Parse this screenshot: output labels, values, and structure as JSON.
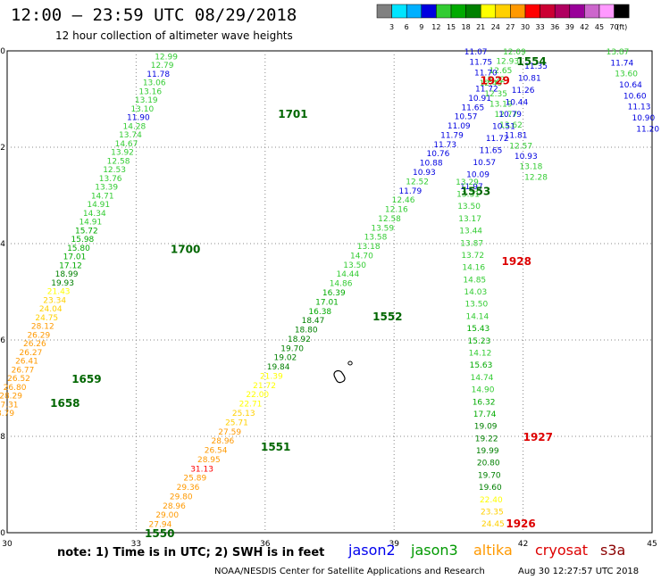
{
  "header": {
    "title": "12:00 – 23:59 UTC 08/29/2018",
    "subtitle": "12 hour collection of altimeter wave heights"
  },
  "legend": {
    "unit": "(ft)",
    "steps": [
      {
        "color": "#808080",
        "label": "3"
      },
      {
        "color": "#00e5ff",
        "label": "6"
      },
      {
        "color": "#00b0ff",
        "label": "9"
      },
      {
        "color": "#0000e0",
        "label": "12"
      },
      {
        "color": "#33cc33",
        "label": "15"
      },
      {
        "color": "#00aa00",
        "label": "18"
      },
      {
        "color": "#008000",
        "label": "21"
      },
      {
        "color": "#ffff00",
        "label": "24"
      },
      {
        "color": "#ffd000",
        "label": "27"
      },
      {
        "color": "#ff9900",
        "label": "30"
      },
      {
        "color": "#ff0000",
        "label": "33"
      },
      {
        "color": "#cc0033",
        "label": "36"
      },
      {
        "color": "#b00060",
        "label": "39"
      },
      {
        "color": "#990099",
        "label": "42"
      },
      {
        "color": "#cc66cc",
        "label": "45"
      },
      {
        "color": "#ff99ff",
        "label": "70"
      },
      {
        "color": "#000000",
        "label": ""
      }
    ]
  },
  "map": {
    "lon_ticks": [
      "30",
      "33",
      "36",
      "39",
      "42",
      "45"
    ],
    "lat_ticks": [
      "-40",
      "-42",
      "-44",
      "-46",
      "-48",
      "-50"
    ]
  },
  "time_labels": [
    {
      "text": "1554",
      "color": "#006600",
      "lon": 41.85,
      "lat": -40.2
    },
    {
      "text": "1929",
      "color": "#dd0000",
      "lon": 41.0,
      "lat": -40.6
    },
    {
      "text": "1701",
      "color": "#006600",
      "lon": 36.3,
      "lat": -41.3
    },
    {
      "text": "1553",
      "color": "#006600",
      "lon": 40.55,
      "lat": -42.9
    },
    {
      "text": "1700",
      "color": "#006600",
      "lon": 33.8,
      "lat": -44.1
    },
    {
      "text": "1928",
      "color": "#dd0000",
      "lon": 41.5,
      "lat": -44.35
    },
    {
      "text": "1552",
      "color": "#006600",
      "lon": 38.5,
      "lat": -45.5
    },
    {
      "text": "1659",
      "color": "#006600",
      "lon": 31.5,
      "lat": -46.8
    },
    {
      "text": "1658",
      "color": "#006600",
      "lon": 31.0,
      "lat": -47.3
    },
    {
      "text": "1927",
      "color": "#dd0000",
      "lon": 42.0,
      "lat": -48.0
    },
    {
      "text": "1551",
      "color": "#006600",
      "lon": 35.9,
      "lat": -48.2
    },
    {
      "text": "1926",
      "color": "#dd0000",
      "lon": 41.6,
      "lat": -49.8
    },
    {
      "text": "1550",
      "color": "#006600",
      "lon": 33.2,
      "lat": -50.0
    }
  ],
  "tracks": [
    {
      "name": "jason3-pass-1",
      "start": [
        33.7,
        -40.1
      ],
      "end": [
        29.9,
        -47.5
      ],
      "values": [
        {
          "t": "12.99",
          "c": "#33cc33"
        },
        {
          "t": "12.79",
          "c": "#33cc33"
        },
        {
          "t": "11.78",
          "c": "#0000e0"
        },
        {
          "t": "13.06",
          "c": "#33cc33"
        },
        {
          "t": "13.16",
          "c": "#33cc33"
        },
        {
          "t": "13.19",
          "c": "#33cc33"
        },
        {
          "t": "13.10",
          "c": "#33cc33"
        },
        {
          "t": "11.90",
          "c": "#0000e0"
        },
        {
          "t": "14.28",
          "c": "#33cc33"
        },
        {
          "t": "13.74",
          "c": "#33cc33"
        },
        {
          "t": "14.67",
          "c": "#33cc33"
        },
        {
          "t": "13.92",
          "c": "#33cc33"
        },
        {
          "t": "12.58",
          "c": "#33cc33"
        },
        {
          "t": "12.53",
          "c": "#33cc33"
        },
        {
          "t": "13.76",
          "c": "#33cc33"
        },
        {
          "t": "13.39",
          "c": "#33cc33"
        },
        {
          "t": "14.71",
          "c": "#33cc33"
        },
        {
          "t": "14.91",
          "c": "#33cc33"
        },
        {
          "t": "14.34",
          "c": "#33cc33"
        },
        {
          "t": "14.91",
          "c": "#33cc33"
        },
        {
          "t": "15.72",
          "c": "#00aa00"
        },
        {
          "t": "15.98",
          "c": "#00aa00"
        },
        {
          "t": "15.80",
          "c": "#00aa00"
        },
        {
          "t": "17.01",
          "c": "#00aa00"
        },
        {
          "t": "17.12",
          "c": "#00aa00"
        },
        {
          "t": "18.99",
          "c": "#008000"
        },
        {
          "t": "19.93",
          "c": "#008000"
        },
        {
          "t": "21.43",
          "c": "#ffff00"
        },
        {
          "t": "23.34",
          "c": "#ffd000"
        },
        {
          "t": "24.04",
          "c": "#ffd000"
        },
        {
          "t": "24.75",
          "c": "#ffd000"
        },
        {
          "t": "28.12",
          "c": "#ff9900"
        },
        {
          "t": "26.29",
          "c": "#ff9900"
        },
        {
          "t": "26.26",
          "c": "#ff9900"
        },
        {
          "t": "26.27",
          "c": "#ff9900"
        },
        {
          "t": "26.41",
          "c": "#ff9900"
        },
        {
          "t": "26.77",
          "c": "#ff9900"
        },
        {
          "t": "26.52",
          "c": "#ff9900"
        },
        {
          "t": "26.80",
          "c": "#ff9900"
        },
        {
          "t": "28.29",
          "c": "#ff9900"
        },
        {
          "t": "27.31",
          "c": "#ff9900"
        },
        {
          "t": "28.79",
          "c": "#ff9900"
        }
      ]
    },
    {
      "name": "jason3-pass-2",
      "start": [
        41.8,
        -40.0
      ],
      "end": [
        33.4,
        -50.0
      ],
      "values": [
        {
          "t": "12.09",
          "c": "#33cc33"
        },
        {
          "t": "12.93",
          "c": "#33cc33"
        },
        {
          "t": "12.65",
          "c": "#33cc33"
        },
        {
          "t": "12.22",
          "c": "#33cc33"
        },
        {
          "t": "11.72",
          "c": "#0000e0"
        },
        {
          "t": "10.91",
          "c": "#0000e0"
        },
        {
          "t": "11.65",
          "c": "#0000e0"
        },
        {
          "t": "10.57",
          "c": "#0000e0"
        },
        {
          "t": "11.09",
          "c": "#0000e0"
        },
        {
          "t": "11.79",
          "c": "#0000e0"
        },
        {
          "t": "11.73",
          "c": "#0000e0"
        },
        {
          "t": "10.76",
          "c": "#0000e0"
        },
        {
          "t": "10.88",
          "c": "#0000e0"
        },
        {
          "t": "10.93",
          "c": "#0000e0"
        },
        {
          "t": "12.52",
          "c": "#33cc33"
        },
        {
          "t": "11.79",
          "c": "#0000e0"
        },
        {
          "t": "12.46",
          "c": "#33cc33"
        },
        {
          "t": "12.16",
          "c": "#33cc33"
        },
        {
          "t": "12.58",
          "c": "#33cc33"
        },
        {
          "t": "13.59",
          "c": "#33cc33"
        },
        {
          "t": "13.58",
          "c": "#33cc33"
        },
        {
          "t": "13.18",
          "c": "#33cc33"
        },
        {
          "t": "14.70",
          "c": "#33cc33"
        },
        {
          "t": "13.50",
          "c": "#33cc33"
        },
        {
          "t": "14.44",
          "c": "#33cc33"
        },
        {
          "t": "14.86",
          "c": "#33cc33"
        },
        {
          "t": "16.39",
          "c": "#00aa00"
        },
        {
          "t": "17.01",
          "c": "#00aa00"
        },
        {
          "t": "16.38",
          "c": "#00aa00"
        },
        {
          "t": "18.47",
          "c": "#008000"
        },
        {
          "t": "18.80",
          "c": "#008000"
        },
        {
          "t": "18.92",
          "c": "#008000"
        },
        {
          "t": "19.70",
          "c": "#008000"
        },
        {
          "t": "19.02",
          "c": "#008000"
        },
        {
          "t": "19.84",
          "c": "#008000"
        },
        {
          "t": "21.39",
          "c": "#ffff00"
        },
        {
          "t": "21.72",
          "c": "#ffff00"
        },
        {
          "t": "22.00",
          "c": "#ffff00"
        },
        {
          "t": "22.71",
          "c": "#ffff00"
        },
        {
          "t": "25.13",
          "c": "#ffd000"
        },
        {
          "t": "25.71",
          "c": "#ffd000"
        },
        {
          "t": "27.59",
          "c": "#ff9900"
        },
        {
          "t": "28.96",
          "c": "#ff9900"
        },
        {
          "t": "26.54",
          "c": "#ff9900"
        },
        {
          "t": "28.95",
          "c": "#ff9900"
        },
        {
          "t": "31.13",
          "c": "#ff0000"
        },
        {
          "t": "25.89",
          "c": "#ff9900"
        },
        {
          "t": "29.36",
          "c": "#ff9900"
        },
        {
          "t": "29.80",
          "c": "#ff9900"
        },
        {
          "t": "28.96",
          "c": "#ff9900"
        },
        {
          "t": "29.00",
          "c": "#ff9900"
        },
        {
          "t": "27.94",
          "c": "#ff9900"
        },
        {
          "t": "27.70",
          "c": "#ff9900"
        }
      ]
    },
    {
      "name": "jason2-pass",
      "start": [
        40.9,
        -40.0
      ],
      "end": [
        42.3,
        -42.6
      ],
      "values": [
        {
          "t": "11.07",
          "c": "#0000e0"
        },
        {
          "t": "11.75",
          "c": "#0000e0"
        },
        {
          "t": "11.70",
          "c": "#0000e0"
        },
        {
          "t": "12.49",
          "c": "#33cc33"
        },
        {
          "t": "12.35",
          "c": "#33cc33"
        },
        {
          "t": "13.19",
          "c": "#33cc33"
        },
        {
          "t": "12.77",
          "c": "#33cc33"
        },
        {
          "t": "13.62",
          "c": "#33cc33"
        },
        {
          "t": "11.81",
          "c": "#0000e0"
        },
        {
          "t": "12.57",
          "c": "#33cc33"
        },
        {
          "t": "10.93",
          "c": "#0000e0"
        },
        {
          "t": "13.18",
          "c": "#33cc33"
        },
        {
          "t": "12.28",
          "c": "#33cc33"
        }
      ]
    },
    {
      "name": "jason2-east-pass",
      "start": [
        42.3,
        -40.3
      ],
      "end": [
        40.8,
        -42.8
      ],
      "values": [
        {
          "t": "11.35",
          "c": "#0000e0"
        },
        {
          "t": "10.81",
          "c": "#0000e0"
        },
        {
          "t": "11.26",
          "c": "#0000e0"
        },
        {
          "t": "10.44",
          "c": "#0000e0"
        },
        {
          "t": "10.79",
          "c": "#0000e0"
        },
        {
          "t": "10.51",
          "c": "#0000e0"
        },
        {
          "t": "11.72",
          "c": "#0000e0"
        },
        {
          "t": "11.65",
          "c": "#0000e0"
        },
        {
          "t": "10.57",
          "c": "#0000e0"
        },
        {
          "t": "10.09",
          "c": "#0000e0"
        },
        {
          "t": "11.97",
          "c": "#0000e0"
        }
      ]
    },
    {
      "name": "cryosat-pass",
      "start": [
        40.7,
        -42.7
      ],
      "end": [
        41.3,
        -49.8
      ],
      "values": [
        {
          "t": "13.29",
          "c": "#33cc33"
        },
        {
          "t": "13.31",
          "c": "#33cc33"
        },
        {
          "t": "13.50",
          "c": "#33cc33"
        },
        {
          "t": "13.17",
          "c": "#33cc33"
        },
        {
          "t": "13.44",
          "c": "#33cc33"
        },
        {
          "t": "13.87",
          "c": "#33cc33"
        },
        {
          "t": "13.72",
          "c": "#33cc33"
        },
        {
          "t": "14.16",
          "c": "#33cc33"
        },
        {
          "t": "14.85",
          "c": "#33cc33"
        },
        {
          "t": "14.03",
          "c": "#33cc33"
        },
        {
          "t": "13.50",
          "c": "#33cc33"
        },
        {
          "t": "14.14",
          "c": "#33cc33"
        },
        {
          "t": "15.43",
          "c": "#00aa00"
        },
        {
          "t": "15.23",
          "c": "#00aa00"
        },
        {
          "t": "14.12",
          "c": "#33cc33"
        },
        {
          "t": "15.63",
          "c": "#00aa00"
        },
        {
          "t": "14.74",
          "c": "#33cc33"
        },
        {
          "t": "14.90",
          "c": "#33cc33"
        },
        {
          "t": "16.32",
          "c": "#00aa00"
        },
        {
          "t": "17.74",
          "c": "#00aa00"
        },
        {
          "t": "19.09",
          "c": "#008000"
        },
        {
          "t": "19.22",
          "c": "#008000"
        },
        {
          "t": "19.99",
          "c": "#008000"
        },
        {
          "t": "20.80",
          "c": "#008000"
        },
        {
          "t": "19.70",
          "c": "#008000"
        },
        {
          "t": "19.60",
          "c": "#008000"
        },
        {
          "t": "22.40",
          "c": "#ffff00"
        },
        {
          "t": "23.35",
          "c": "#ffd000"
        },
        {
          "t": "24.45",
          "c": "#ffd000"
        }
      ]
    },
    {
      "name": "east-edge-pass",
      "start": [
        44.2,
        -40.0
      ],
      "end": [
        44.9,
        -41.6
      ],
      "values": [
        {
          "t": "13.87",
          "c": "#33cc33"
        },
        {
          "t": "11.74",
          "c": "#0000e0"
        },
        {
          "t": "13.60",
          "c": "#33cc33"
        },
        {
          "t": "10.64",
          "c": "#0000e0"
        },
        {
          "t": "10.60",
          "c": "#0000e0"
        },
        {
          "t": "11.13",
          "c": "#0000e0"
        },
        {
          "t": "10.90",
          "c": "#0000e0"
        },
        {
          "t": "11.20",
          "c": "#0000e0"
        }
      ]
    }
  ],
  "footer": {
    "note": "note: 1) Time is in UTC; 2) SWH is in feet",
    "satellites": [
      {
        "label": "jason2",
        "color": "#0000ee"
      },
      {
        "label": "jason3",
        "color": "#009900"
      },
      {
        "label": "altika",
        "color": "#ff9900"
      },
      {
        "label": "cryosat",
        "color": "#dd0000"
      },
      {
        "label": "s3a",
        "color": "#8b0000"
      }
    ],
    "credit": "NOAA/NESDIS Center for Satellite Applications and Research",
    "timestamp": "Aug 30 12:27:57 UTC 2018"
  }
}
